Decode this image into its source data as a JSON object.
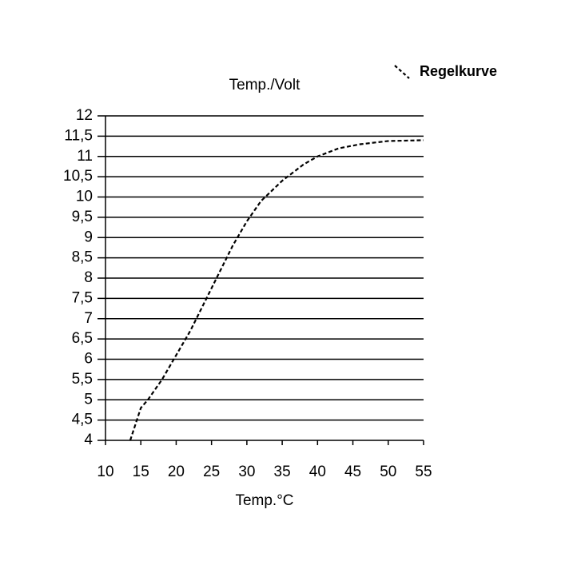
{
  "chart_data": {
    "type": "line",
    "title": "Temp./Volt",
    "x_label": "Temp.°C",
    "x": [
      13.5,
      15,
      16,
      18,
      20,
      22,
      24,
      26,
      28,
      30,
      32,
      35,
      38,
      40,
      43,
      46,
      50,
      55
    ],
    "series": [
      {
        "name": "Regelkurve",
        "color": "#000000",
        "line_style": "dashed",
        "values": [
          4,
          4.8,
          5.0,
          5.5,
          6.1,
          6.7,
          7.4,
          8.1,
          8.8,
          9.4,
          9.9,
          10.4,
          10.8,
          11.0,
          11.2,
          11.3,
          11.38,
          11.4
        ]
      }
    ],
    "xlim": [
      10,
      55
    ],
    "xticks": [
      10,
      15,
      20,
      25,
      30,
      35,
      40,
      45,
      50,
      55
    ],
    "ylim": [
      4,
      12
    ],
    "yticks": [
      4,
      {
        "value": 4.5,
        "label": "4,5"
      },
      5,
      {
        "value": 5.5,
        "label": "5,5"
      },
      6,
      {
        "value": 6.5,
        "label": "6,5"
      },
      7,
      {
        "value": 7.5,
        "label": "7,5"
      },
      8,
      {
        "value": 8.5,
        "label": "8,5"
      },
      9,
      {
        "value": 9.5,
        "label": "9,5"
      },
      10,
      {
        "value": 10.5,
        "label": "10,5"
      },
      11,
      {
        "value": 11.5,
        "label": "11,5"
      },
      12
    ],
    "grid": true,
    "legend": "top-right"
  }
}
